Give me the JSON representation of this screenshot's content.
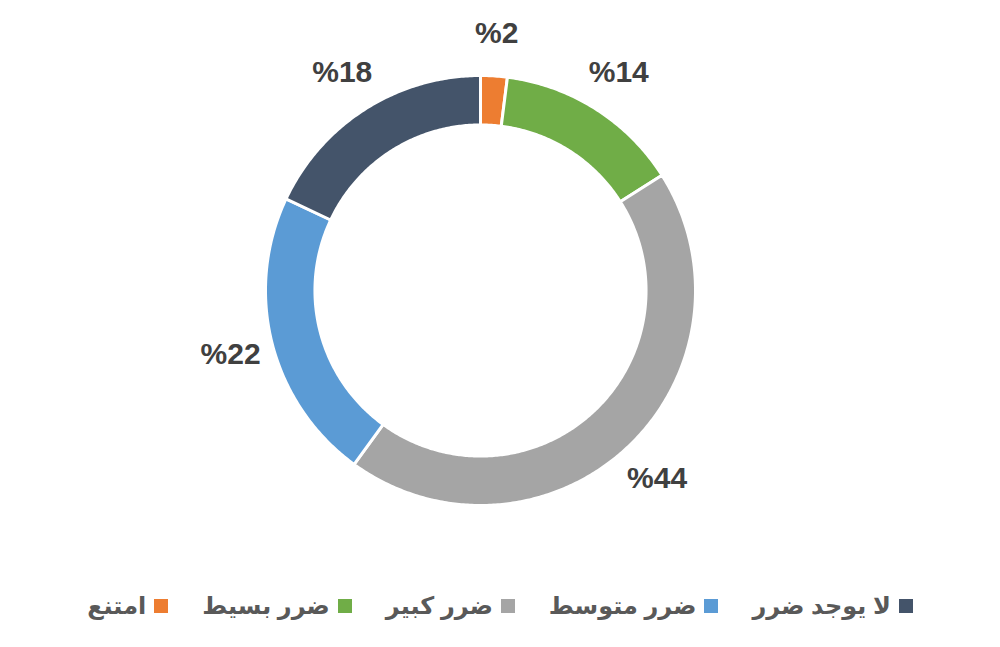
{
  "chart_data": {
    "type": "pie",
    "categories": [
      "امتنع",
      "ضرر بسيط",
      "ضرر كبير",
      "ضرر متوسط",
      "لا يوجد ضرر"
    ],
    "values": [
      2,
      14,
      44,
      22,
      18
    ],
    "value_labels": [
      "%2",
      "%14",
      "%44",
      "%22",
      "%18"
    ],
    "colors": [
      "#ED7D31",
      "#70AD47",
      "#A5A5A5",
      "#5B9BD5",
      "#44546A"
    ],
    "data_labels": true,
    "legend": "bottom"
  }
}
